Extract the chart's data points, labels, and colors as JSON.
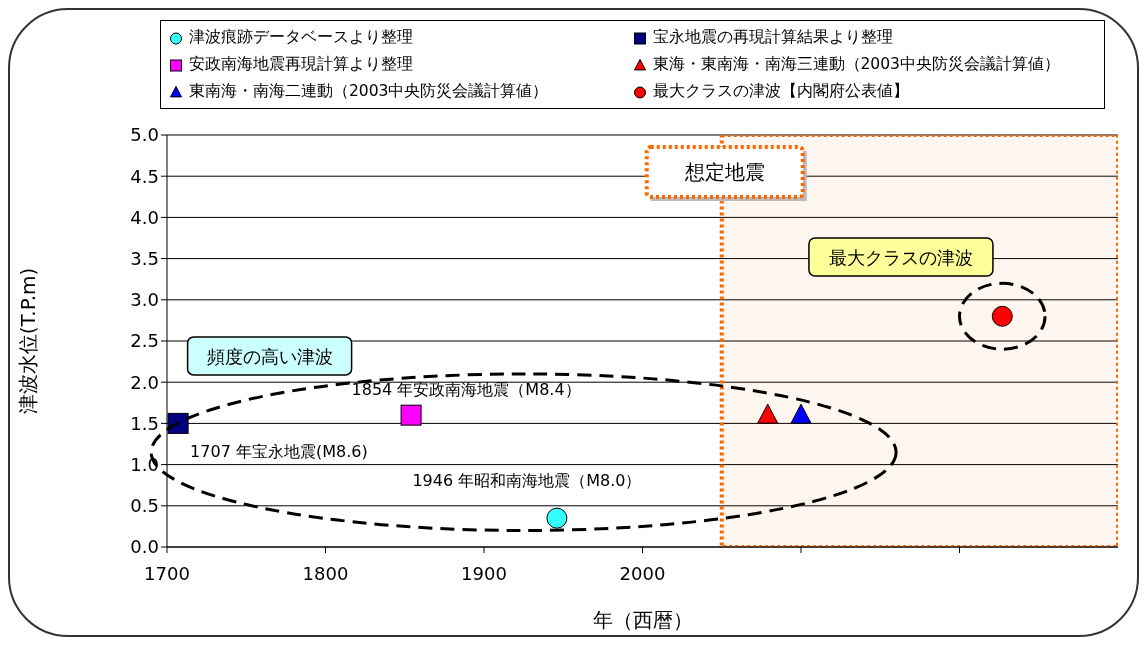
{
  "chart_data": {
    "type": "scatter",
    "xlabel": "年（西暦）",
    "ylabel": "津波水位(T.P.m)",
    "xlim": [
      1700,
      2300
    ],
    "xticks": [
      1700,
      1800,
      1900,
      2000,
      {
        "value": 2100,
        "label": null
      },
      {
        "value": 2200,
        "label": null
      }
    ],
    "ylim": [
      0,
      5
    ],
    "yticks": [
      {
        "value": 0,
        "label": "0.0"
      },
      0.5,
      {
        "value": 1,
        "label": "1.0"
      },
      1.5,
      {
        "value": 2,
        "label": "2.0"
      },
      2.5,
      {
        "value": 3,
        "label": "3.0"
      },
      3.5,
      {
        "value": 4,
        "label": "4.0"
      },
      4.5,
      {
        "value": 5,
        "label": "5.0"
      }
    ],
    "grid": "y",
    "legend": "top",
    "series": [
      {
        "name": "津波痕跡データベースより整理",
        "color": "#33ffff",
        "marker": "circle",
        "x": [
          1946
        ],
        "values": [
          0.35
        ]
      },
      {
        "name": "宝永地震の再現計算結果より整理",
        "color": "#000080",
        "marker": "square",
        "x": [
          1707
        ],
        "values": [
          1.5
        ]
      },
      {
        "name": "安政南海地震再現計算より整理",
        "color": "#ff00ff",
        "marker": "square",
        "x": [
          1854
        ],
        "values": [
          1.6
        ]
      },
      {
        "name": "東海・東南海・南海三連動（2003中央防災会議計算値）",
        "color": "#ff0000",
        "marker": "triangle",
        "x": [
          2079
        ],
        "values": [
          1.6
        ]
      },
      {
        "name": "東南海・南海二連動（2003中央防災会議計算値）",
        "color": "#0000ff",
        "marker": "triangle",
        "x": [
          2100
        ],
        "values": [
          1.6
        ]
      },
      {
        "name": "最大クラスの津波【内閣府公表値】",
        "color": "#ff0000",
        "marker": "circle",
        "x": [
          2227
        ],
        "values": [
          2.8
        ]
      }
    ],
    "bands": [
      {
        "axis": "x",
        "from": 2050,
        "to": 2300,
        "label": "想定地震",
        "color": "#ff6600"
      }
    ],
    "annotations": [
      "頻度の高い津波",
      "最大クラスの津波",
      {
        "text": "1854 年安政南海地震（M8.4）",
        "x": 1854,
        "y": 1.6
      },
      {
        "text": "1707 年宝永地震(M8.6)",
        "x": 1707,
        "y": 1.5
      },
      {
        "text": "1946 年昭和南海地震（M8.0）",
        "x": 1946,
        "y": 0.35
      }
    ]
  }
}
